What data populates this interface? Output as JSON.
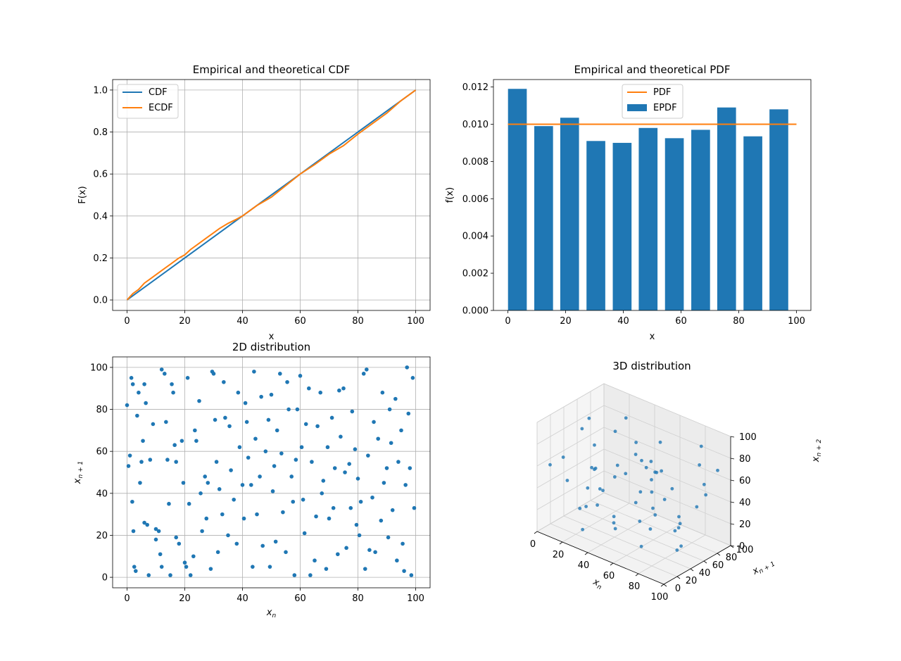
{
  "colors": {
    "blue": "#1f77b4",
    "orange": "#ff7f0e",
    "grid": "#b0b0b0"
  },
  "chart_data": [
    {
      "type": "line",
      "title": "Empirical and theoretical CDF",
      "xlabel": "x",
      "ylabel": "F(x)",
      "xlim": [
        -5,
        105
      ],
      "ylim": [
        -0.05,
        1.05
      ],
      "xticks": [
        0,
        20,
        40,
        60,
        80,
        100
      ],
      "xtick_labels": [
        "0",
        "20",
        "40",
        "60",
        "80",
        "100"
      ],
      "yticks": [
        0,
        0.2,
        0.4,
        0.6,
        0.8,
        1.0
      ],
      "ytick_labels": [
        "0.0",
        "0.2",
        "0.4",
        "0.6",
        "0.8",
        "1.0"
      ],
      "grid": true,
      "legend": "top-left",
      "series": [
        {
          "name": "CDF",
          "color": "#1f77b4",
          "x": [
            0,
            100
          ],
          "y": [
            0,
            1
          ]
        },
        {
          "name": "ECDF",
          "color": "#ff7f0e",
          "x": [
            0,
            2,
            4,
            6,
            8,
            10,
            12,
            15,
            18,
            20,
            22,
            25,
            28,
            30,
            32,
            35,
            38,
            40,
            45,
            50,
            55,
            60,
            65,
            70,
            75,
            80,
            85,
            90,
            95,
            100
          ],
          "y": [
            0,
            0.03,
            0.05,
            0.08,
            0.1,
            0.12,
            0.14,
            0.17,
            0.2,
            0.215,
            0.24,
            0.27,
            0.3,
            0.32,
            0.34,
            0.365,
            0.385,
            0.4,
            0.45,
            0.49,
            0.545,
            0.6,
            0.645,
            0.695,
            0.735,
            0.79,
            0.84,
            0.89,
            0.95,
            1.0
          ]
        }
      ]
    },
    {
      "type": "bar",
      "title": "Empirical and theoretical PDF",
      "xlabel": "x",
      "ylabel": "f(x)",
      "xlim": [
        -5,
        105
      ],
      "ylim": [
        0,
        0.0124
      ],
      "xticks": [
        0,
        20,
        40,
        60,
        80,
        100
      ],
      "xtick_labels": [
        "0",
        "20",
        "40",
        "60",
        "80",
        "100"
      ],
      "yticks": [
        0,
        0.002,
        0.004,
        0.006,
        0.008,
        0.01,
        0.012
      ],
      "ytick_labels": [
        "0.000",
        "0.002",
        "0.004",
        "0.006",
        "0.008",
        "0.010",
        "0.012"
      ],
      "grid": false,
      "legend": "top-center",
      "bar_centers": [
        3.3,
        12.4,
        21.4,
        30.5,
        39.6,
        48.6,
        57.7,
        66.8,
        75.8,
        84.9,
        93.9
      ],
      "bar_width": 6.5,
      "values": [
        0.0119,
        0.0099,
        0.01035,
        0.0091,
        0.009,
        0.0098,
        0.00925,
        0.0097,
        0.0109,
        0.00935,
        0.0108
      ],
      "series": [
        {
          "name": "PDF",
          "color": "#ff7f0e",
          "x": [
            0,
            100
          ],
          "y": [
            0.01,
            0.01
          ]
        },
        {
          "name": "EPDF",
          "color": "#1f77b4"
        }
      ]
    },
    {
      "type": "scatter",
      "title": "2D distribution",
      "xlabel": "x_n",
      "ylabel": "x_{n+1}",
      "xlim": [
        -5,
        105
      ],
      "ylim": [
        -5,
        105
      ],
      "xticks": [
        0,
        20,
        40,
        60,
        80,
        100
      ],
      "xtick_labels": [
        "0",
        "20",
        "40",
        "60",
        "80",
        "100"
      ],
      "yticks": [
        0,
        20,
        40,
        60,
        80,
        100
      ],
      "ytick_labels": [
        "0",
        "20",
        "40",
        "60",
        "80",
        "100"
      ],
      "grid": true,
      "color": "#1f77b4",
      "points": [
        [
          0,
          82
        ],
        [
          0.5,
          53
        ],
        [
          1,
          58
        ],
        [
          1.5,
          95
        ],
        [
          2,
          92
        ],
        [
          1.8,
          36
        ],
        [
          2.2,
          22
        ],
        [
          2.5,
          5
        ],
        [
          3,
          3
        ],
        [
          3.5,
          77
        ],
        [
          4,
          88
        ],
        [
          4.5,
          45
        ],
        [
          5,
          55
        ],
        [
          5.5,
          65
        ],
        [
          6,
          92
        ],
        [
          6.5,
          83
        ],
        [
          6,
          26
        ],
        [
          7,
          25
        ],
        [
          7.5,
          1
        ],
        [
          8,
          56
        ],
        [
          9,
          73
        ],
        [
          10,
          18
        ],
        [
          10,
          23
        ],
        [
          11,
          22
        ],
        [
          11.5,
          11
        ],
        [
          12,
          5
        ],
        [
          12,
          99
        ],
        [
          13,
          97
        ],
        [
          13.5,
          74
        ],
        [
          14,
          56
        ],
        [
          14.5,
          35
        ],
        [
          15,
          1
        ],
        [
          15.5,
          92
        ],
        [
          16,
          88
        ],
        [
          16.5,
          63
        ],
        [
          17,
          55
        ],
        [
          17,
          19
        ],
        [
          18,
          16
        ],
        [
          19,
          65
        ],
        [
          19.5,
          45
        ],
        [
          20,
          7
        ],
        [
          20.5,
          5
        ],
        [
          21,
          95
        ],
        [
          21.5,
          35
        ],
        [
          22,
          1
        ],
        [
          23,
          10
        ],
        [
          23.5,
          70
        ],
        [
          24,
          65
        ],
        [
          25,
          84
        ],
        [
          25.5,
          40
        ],
        [
          26,
          22
        ],
        [
          27,
          48
        ],
        [
          27.5,
          28
        ],
        [
          28,
          45
        ],
        [
          29,
          4
        ],
        [
          29.5,
          98
        ],
        [
          30,
          97
        ],
        [
          30.5,
          75
        ],
        [
          31,
          55
        ],
        [
          31.5,
          12
        ],
        [
          32,
          42
        ],
        [
          33,
          30
        ],
        [
          33.5,
          93
        ],
        [
          34,
          76
        ],
        [
          35,
          20
        ],
        [
          35.5,
          72
        ],
        [
          36,
          51
        ],
        [
          37,
          37
        ],
        [
          38,
          16
        ],
        [
          38.5,
          88
        ],
        [
          39,
          62
        ],
        [
          40,
          44
        ],
        [
          40.5,
          28
        ],
        [
          41,
          83
        ],
        [
          41.5,
          74
        ],
        [
          42,
          57
        ],
        [
          43,
          44
        ],
        [
          43.5,
          5
        ],
        [
          44,
          98
        ],
        [
          44.5,
          66
        ],
        [
          45,
          30
        ],
        [
          46,
          48
        ],
        [
          46.5,
          86
        ],
        [
          47,
          15
        ],
        [
          48,
          60
        ],
        [
          49,
          75
        ],
        [
          49.5,
          5
        ],
        [
          50,
          87
        ],
        [
          50.5,
          41
        ],
        [
          51,
          53
        ],
        [
          51.5,
          17
        ],
        [
          52,
          70
        ],
        [
          53,
          97
        ],
        [
          53.5,
          59
        ],
        [
          54,
          31
        ],
        [
          55,
          12
        ],
        [
          55.5,
          93
        ],
        [
          56,
          80
        ],
        [
          57,
          48
        ],
        [
          57.5,
          36
        ],
        [
          58,
          1
        ],
        [
          58.5,
          56
        ],
        [
          59,
          80
        ],
        [
          60,
          96
        ],
        [
          60.5,
          62
        ],
        [
          61,
          37
        ],
        [
          61.5,
          21
        ],
        [
          62,
          73
        ],
        [
          63,
          90
        ],
        [
          63.5,
          1
        ],
        [
          64,
          55
        ],
        [
          65,
          8
        ],
        [
          65.5,
          29
        ],
        [
          66,
          72
        ],
        [
          67,
          88
        ],
        [
          67.5,
          40
        ],
        [
          68,
          46
        ],
        [
          69,
          4
        ],
        [
          69.5,
          62
        ],
        [
          70,
          28
        ],
        [
          71,
          76
        ],
        [
          71.5,
          33
        ],
        [
          72,
          52
        ],
        [
          73,
          11
        ],
        [
          73.5,
          89
        ],
        [
          74,
          67
        ],
        [
          75,
          90
        ],
        [
          75.5,
          50
        ],
        [
          76,
          14
        ],
        [
          77,
          54
        ],
        [
          77.5,
          33
        ],
        [
          78,
          79
        ],
        [
          79,
          61
        ],
        [
          79.5,
          25
        ],
        [
          80,
          47
        ],
        [
          80.5,
          20
        ],
        [
          81,
          36
        ],
        [
          82,
          97
        ],
        [
          82.5,
          4
        ],
        [
          83,
          99
        ],
        [
          83.5,
          58
        ],
        [
          84,
          13
        ],
        [
          85,
          38
        ],
        [
          85.5,
          74
        ],
        [
          86,
          12
        ],
        [
          87,
          66
        ],
        [
          88,
          27
        ],
        [
          88.5,
          88
        ],
        [
          89,
          45
        ],
        [
          90,
          52
        ],
        [
          90.5,
          19
        ],
        [
          91,
          80
        ],
        [
          91.5,
          64
        ],
        [
          92,
          32
        ],
        [
          93,
          85
        ],
        [
          93.5,
          8
        ],
        [
          94,
          55
        ],
        [
          95,
          70
        ],
        [
          95.5,
          16
        ],
        [
          96,
          3
        ],
        [
          96.5,
          44
        ],
        [
          97,
          100
        ],
        [
          97.5,
          78
        ],
        [
          98,
          52
        ],
        [
          98.5,
          1
        ],
        [
          99,
          95
        ],
        [
          99.5,
          33
        ]
      ]
    },
    {
      "type": "scatter",
      "title": "3D distribution",
      "xlabel": "x_n",
      "ylabel": "x_{n+1}",
      "zlabel": "x_{n+2}",
      "xticks": [
        0,
        20,
        40,
        60,
        80,
        100
      ],
      "xtick_labels": [
        "0",
        "20",
        "40",
        "60",
        "80",
        "100"
      ],
      "yticks": [
        0,
        20,
        40,
        60,
        80,
        100
      ],
      "ytick_labels": [
        "0",
        "20",
        "40",
        "60",
        "80",
        "100"
      ],
      "zticks": [
        0,
        20,
        40,
        60,
        80,
        100
      ],
      "ztick_labels": [
        "0",
        "20",
        "40",
        "60",
        "80",
        "100"
      ],
      "color": "#1f77b4",
      "points": [
        [
          5,
          10,
          60
        ],
        [
          8,
          30,
          40
        ],
        [
          12,
          55,
          90
        ],
        [
          15,
          70,
          20
        ],
        [
          18,
          5,
          75
        ],
        [
          22,
          40,
          55
        ],
        [
          25,
          85,
          35
        ],
        [
          28,
          15,
          10
        ],
        [
          30,
          60,
          85
        ],
        [
          33,
          25,
          65
        ],
        [
          35,
          90,
          50
        ],
        [
          38,
          45,
          5
        ],
        [
          40,
          10,
          95
        ],
        [
          42,
          75,
          30
        ],
        [
          45,
          35,
          70
        ],
        [
          48,
          95,
          45
        ],
        [
          50,
          20,
          25
        ],
        [
          52,
          55,
          15
        ],
        [
          55,
          80,
          80
        ],
        [
          58,
          5,
          40
        ],
        [
          60,
          65,
          60
        ],
        [
          62,
          30,
          90
        ],
        [
          65,
          50,
          35
        ],
        [
          68,
          85,
          10
        ],
        [
          70,
          15,
          55
        ],
        [
          72,
          40,
          75
        ],
        [
          75,
          70,
          25
        ],
        [
          78,
          95,
          65
        ],
        [
          80,
          25,
          45
        ],
        [
          82,
          60,
          5
        ],
        [
          85,
          10,
          85
        ],
        [
          88,
          45,
          30
        ],
        [
          90,
          75,
          95
        ],
        [
          92,
          35,
          15
        ],
        [
          95,
          90,
          70
        ],
        [
          97,
          55,
          50
        ],
        [
          3,
          80,
          30
        ],
        [
          10,
          45,
          10
        ],
        [
          20,
          95,
          80
        ],
        [
          27,
          65,
          40
        ],
        [
          37,
          20,
          35
        ],
        [
          47,
          5,
          60
        ],
        [
          57,
          40,
          95
        ],
        [
          67,
          75,
          45
        ],
        [
          77,
          10,
          20
        ],
        [
          87,
          85,
          55
        ],
        [
          93,
          30,
          35
        ],
        [
          7,
          60,
          5
        ],
        [
          17,
          35,
          90
        ],
        [
          32,
          15,
          50
        ],
        [
          43,
          90,
          25
        ],
        [
          53,
          70,
          65
        ],
        [
          63,
          50,
          15
        ],
        [
          73,
          25,
          85
        ],
        [
          83,
          95,
          40
        ],
        [
          98,
          5,
          75
        ]
      ]
    }
  ]
}
